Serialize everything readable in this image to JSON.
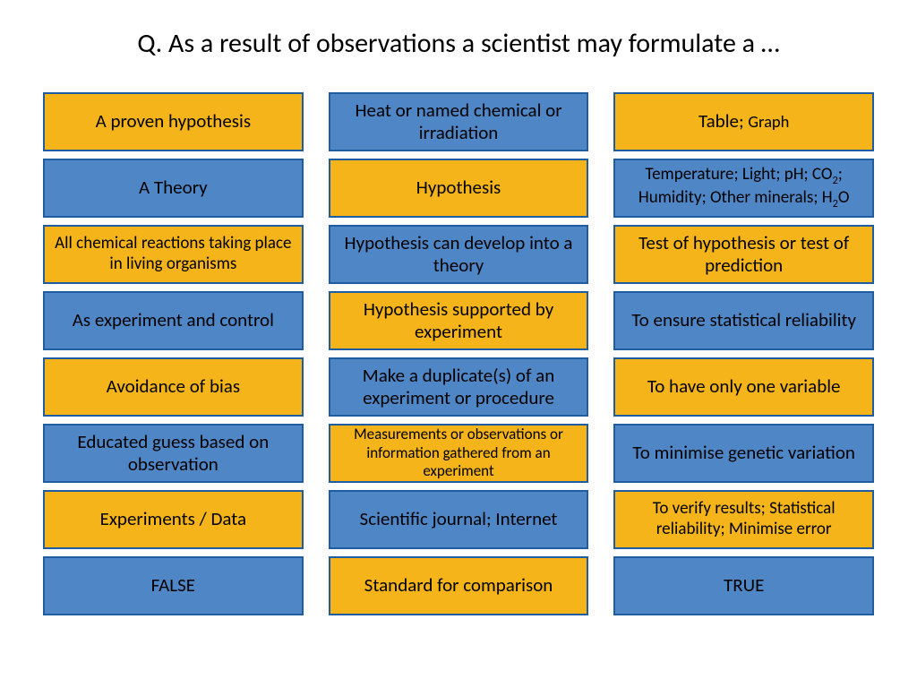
{
  "title": "Q. As a result of observations a scientist may formulate a …",
  "colors": {
    "yellow_bg": "#f4b41a",
    "yellow_border": "#1f5da0",
    "blue_bg": "#4f86c6",
    "blue_border": "#1f5da0"
  },
  "font_sizes": {
    "large": 21,
    "medium": 19,
    "small": 17
  },
  "columns": [
    [
      {
        "text": "A proven hypothesis",
        "color": "yellow",
        "size": "large"
      },
      {
        "text": "A Theory",
        "color": "blue",
        "size": "large"
      },
      {
        "text": "All chemical reactions taking place in living organisms",
        "color": "yellow",
        "size": "medium"
      },
      {
        "text": "As experiment and control",
        "color": "blue",
        "size": "large"
      },
      {
        "text": "Avoidance of bias",
        "color": "yellow",
        "size": "large"
      },
      {
        "text": "Educated guess based on observation",
        "color": "blue",
        "size": "large"
      },
      {
        "text": "Experiments / Data",
        "color": "yellow",
        "size": "large"
      },
      {
        "text": "FALSE",
        "color": "blue",
        "size": "large"
      }
    ],
    [
      {
        "text": "Heat or named chemical or irradiation",
        "color": "blue",
        "size": "large"
      },
      {
        "text": "Hypothesis",
        "color": "yellow",
        "size": "large"
      },
      {
        "text": "Hypothesis can develop into a theory",
        "color": "blue",
        "size": "large"
      },
      {
        "text": "Hypothesis supported by experiment",
        "color": "yellow",
        "size": "large"
      },
      {
        "text": "Make a duplicate(s) of an experiment or procedure",
        "color": "blue",
        "size": "large"
      },
      {
        "text": "Measurements or observations or information gathered from an experiment",
        "color": "yellow",
        "size": "small"
      },
      {
        "text": "Scientific journal; Internet",
        "color": "blue",
        "size": "large"
      },
      {
        "text": "Standard for comparison",
        "color": "yellow",
        "size": "large"
      }
    ],
    [
      {
        "html": "Table; <span class=\"mixed-small\">Graph</span>",
        "color": "yellow",
        "size": "large"
      },
      {
        "html": "Temperature; Light; pH; CO<span class=\"sub\">2</span>; Humidity; Other minerals; H<span class=\"sub\">2</span>O",
        "color": "blue",
        "size": "medium"
      },
      {
        "text": "Test of hypothesis or test of prediction",
        "color": "yellow",
        "size": "large"
      },
      {
        "text": "To ensure statistical reliability",
        "color": "blue",
        "size": "large"
      },
      {
        "text": "To have only one variable",
        "color": "yellow",
        "size": "large"
      },
      {
        "text": "To minimise genetic variation",
        "color": "blue",
        "size": "large"
      },
      {
        "text": "To verify results; Statistical reliability; Minimise error",
        "color": "yellow",
        "size": "medium"
      },
      {
        "text": "TRUE",
        "color": "blue",
        "size": "large"
      }
    ]
  ]
}
